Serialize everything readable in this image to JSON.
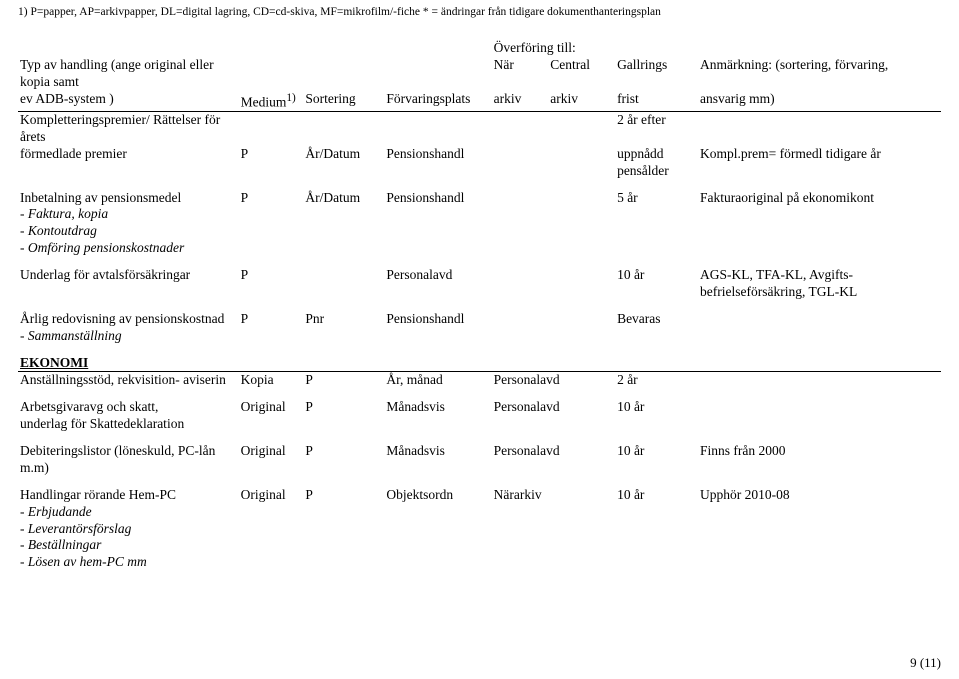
{
  "legend": "1) P=papper, AP=arkivpapper, DL=digital lagring, CD=cd-skiva, MF=mikrofilm/-fiche * = ändringar från tidigare dokumenthanteringsplan",
  "header": {
    "over_title": "Överföring till:",
    "typ1": "Typ av handling (ange original eller kopia samt",
    "typ2": "ev ADB-system )",
    "medium": "Medium",
    "medium_sup": "1)",
    "sort": "Sortering",
    "forv": "Förvaringsplats",
    "nar1": "När",
    "nar2": "arkiv",
    "cent1": "Central",
    "cent2": "arkiv",
    "gall1": "Gallrings",
    "gall2": "frist",
    "anm1": "Anmärkning: (sortering, förvaring,",
    "anm2": "ansvarig mm)"
  },
  "rows": {
    "r1": {
      "typ1": "Kompletteringspremier/ Rättelser för årets",
      "typ2": "förmedlade premier",
      "sort_p": "P",
      "sort": "År/Datum",
      "forv": "Pensionshandl",
      "gall1": "2 år efter",
      "gall2": "uppnådd",
      "gall3": "pensålder",
      "anm": "Kompl.prem= förmedl tidigare år"
    },
    "r2": {
      "typ1": "Inbetalning av pensionsmedel",
      "sub1": " - Faktura, kopia",
      "sub2": " - Kontoutdrag",
      "sub3": " - Omföring pensionskostnader",
      "sort_p": "P",
      "sort": "År/Datum",
      "forv": "Pensionshandl",
      "gall": "5 år",
      "anm": "Fakturaoriginal på ekonomikont"
    },
    "r3": {
      "typ1": "Underlag för avtalsförsäkringar",
      "sort_p": "P",
      "forv": "Personalavd",
      "gall": "10 år",
      "anm1": "AGS-KL, TFA-KL, Avgifts-",
      "anm2": "befrielseförsäkring, TGL-KL"
    },
    "r4": {
      "typ1": "Årlig redovisning av pensionskostnad",
      "sub1": " - Sammanställning",
      "sort_p": "P",
      "sort": "Pnr",
      "forv": "Pensionshandl",
      "gall": "Bevaras"
    },
    "ekonomi": "EKONOMI",
    "r5": {
      "typ1": "Anställningsstöd, rekvisition- aviserin",
      "med": "Kopia",
      "sort_p": "P",
      "sort": "År, månad",
      "forv": "Personalavd",
      "gall": "2 år"
    },
    "r6": {
      "typ1": "Arbetsgivaravg och skatt,",
      "typ2": "underlag för Skattedeklaration",
      "med": "Original",
      "sort_p": "P",
      "sort": "Månadsvis",
      "forv": "Personalavd",
      "gall": "10 år"
    },
    "r7": {
      "typ1": "Debiteringslistor (löneskuld, PC-lån",
      "typ2": "m.m)",
      "med": "Original",
      "sort_p": "P",
      "sort": "Månadsvis",
      "forv": "Personalavd",
      "gall": "10 år",
      "anm": "Finns från 2000"
    },
    "r8": {
      "typ1": "Handlingar rörande Hem-PC",
      "sub1": " - Erbjudande",
      "sub2": " - Leverantörsförslag",
      "sub3": " - Beställningar",
      "sub4": " - Lösen av hem-PC mm",
      "med": "Original",
      "sort_p": "P",
      "sort": "Objektsordn",
      "forv": "Närarkiv",
      "gall": "10 år",
      "anm": "Upphör 2010-08"
    }
  },
  "page_num": "9 (11)"
}
